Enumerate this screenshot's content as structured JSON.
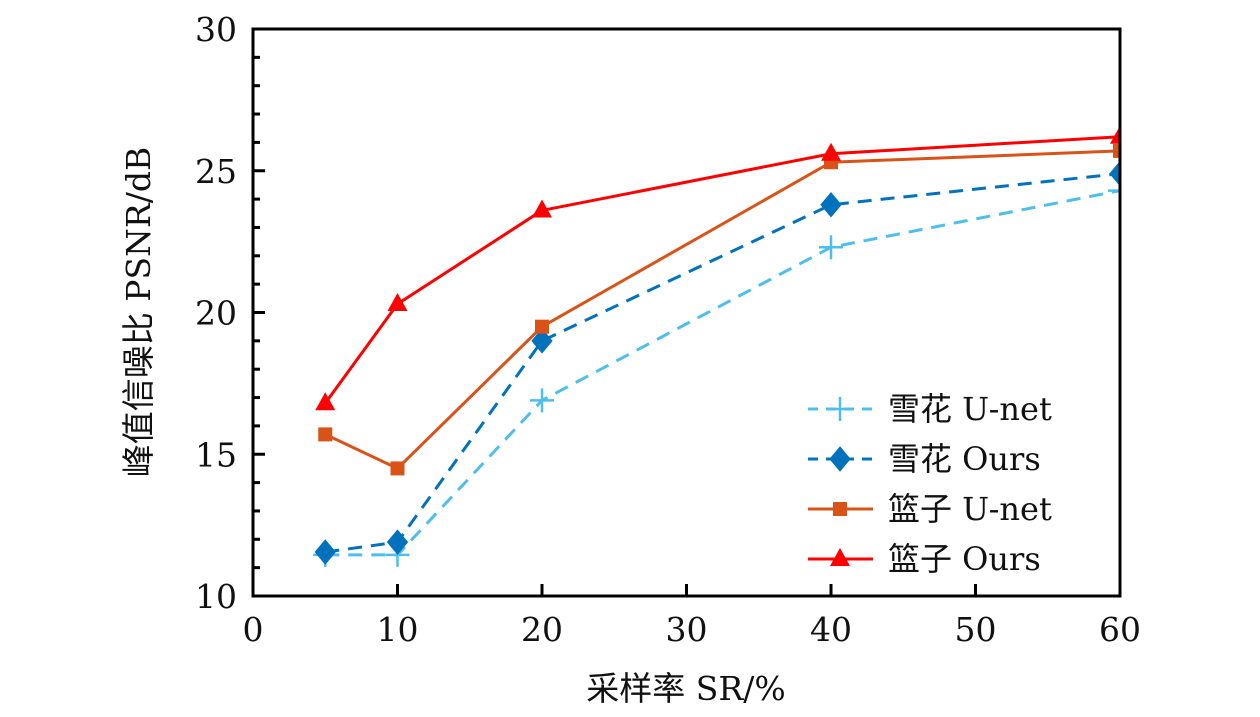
{
  "chart_data": {
    "type": "line",
    "title": "",
    "xlabel": "采样率 SR/%",
    "ylabel": "峰值信噪比 PSNR/dB",
    "xlim": [
      0,
      60
    ],
    "ylim": [
      10,
      30
    ],
    "xticks": [
      0,
      10,
      20,
      30,
      40,
      50,
      60
    ],
    "xtick_labels": [
      "0",
      "10",
      "20",
      "30",
      "40",
      "50",
      "60"
    ],
    "yticks": [
      10,
      15,
      20,
      25,
      30
    ],
    "ytick_labels": [
      "10",
      "15",
      "20",
      "25",
      "30"
    ],
    "y_minor_step": 1,
    "grid": false,
    "legend_position": "bottom-right",
    "x": [
      5,
      10,
      20,
      40,
      60
    ],
    "series": [
      {
        "name": "雪花 U-net",
        "values": [
          11.45,
          11.45,
          16.9,
          22.3,
          24.3
        ],
        "color": "#4DBEEE",
        "marker": "plus",
        "linestyle": "dashed"
      },
      {
        "name": "雪花 Ours",
        "values": [
          11.55,
          11.9,
          19.0,
          23.8,
          24.9
        ],
        "color": "#0072BD",
        "marker": "diamond",
        "linestyle": "dashed"
      },
      {
        "name": "篮子 U-net",
        "values": [
          15.7,
          14.5,
          19.5,
          25.3,
          25.7
        ],
        "color": "#D95319",
        "marker": "square",
        "linestyle": "solid"
      },
      {
        "name": "篮子 Ours",
        "values": [
          16.8,
          20.3,
          23.6,
          25.6,
          26.2
        ],
        "color": "#FF0000",
        "marker": "triangle",
        "linestyle": "solid"
      }
    ]
  }
}
